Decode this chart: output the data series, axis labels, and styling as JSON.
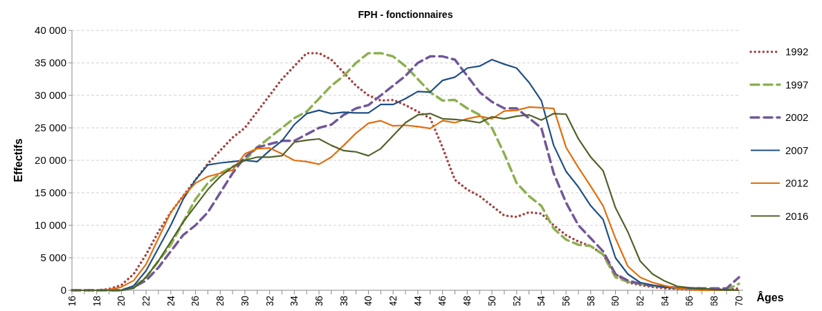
{
  "chart_data": {
    "type": "line",
    "title": "FPH - fonctionnaires",
    "xlabel": "Âges",
    "ylabel": "Effectifs",
    "x": [
      16,
      17,
      18,
      19,
      20,
      21,
      22,
      23,
      24,
      25,
      26,
      27,
      28,
      29,
      30,
      31,
      32,
      33,
      34,
      35,
      36,
      37,
      38,
      39,
      40,
      41,
      42,
      43,
      44,
      45,
      46,
      47,
      48,
      49,
      50,
      51,
      52,
      53,
      54,
      55,
      56,
      57,
      58,
      59,
      60,
      61,
      62,
      63,
      64,
      65,
      66,
      67,
      68,
      69,
      70
    ],
    "xlim": [
      16,
      70
    ],
    "xticks": [
      16,
      {
        "value": 17,
        "label": null
      },
      18,
      {
        "value": 19,
        "label": null
      },
      20,
      {
        "value": 21,
        "label": null
      },
      22,
      {
        "value": 23,
        "label": null
      },
      24,
      {
        "value": 25,
        "label": null
      },
      26,
      {
        "value": 27,
        "label": null
      },
      28,
      {
        "value": 29,
        "label": null
      },
      30,
      {
        "value": 31,
        "label": null
      },
      32,
      {
        "value": 33,
        "label": null
      },
      34,
      {
        "value": 35,
        "label": null
      },
      36,
      {
        "value": 37,
        "label": null
      },
      38,
      {
        "value": 39,
        "label": null
      },
      40,
      {
        "value": 41,
        "label": null
      },
      42,
      {
        "value": 43,
        "label": null
      },
      44,
      {
        "value": 45,
        "label": null
      },
      46,
      {
        "value": 47,
        "label": null
      },
      48,
      {
        "value": 49,
        "label": null
      },
      50,
      {
        "value": 51,
        "label": null
      },
      52,
      {
        "value": 53,
        "label": null
      },
      54,
      {
        "value": 55,
        "label": null
      },
      56,
      {
        "value": 57,
        "label": null
      },
      58,
      {
        "value": 59,
        "label": null
      },
      60,
      {
        "value": 61,
        "label": null
      },
      62,
      {
        "value": 63,
        "label": null
      },
      64,
      {
        "value": 65,
        "label": null
      },
      66,
      {
        "value": 67,
        "label": null
      },
      68,
      {
        "value": 69,
        "label": null
      },
      70
    ],
    "ylim": [
      0,
      40000
    ],
    "yticks": [
      0,
      {
        "value": 5000,
        "label": "5 000"
      },
      {
        "value": 10000,
        "label": "10 000"
      },
      {
        "value": 15000,
        "label": "15 000"
      },
      {
        "value": 20000,
        "label": "20 000"
      },
      {
        "value": 25000,
        "label": "25 000"
      },
      {
        "value": 30000,
        "label": "30 000"
      },
      {
        "value": 35000,
        "label": "35 000"
      },
      {
        "value": 40000,
        "label": "40 000"
      }
    ],
    "grid": "y",
    "legend": "right",
    "marker": "none",
    "series": [
      {
        "name": "1992",
        "color": "#a5413f",
        "line_style": "dotted",
        "values": [
          0,
          0,
          0,
          200,
          800,
          2500,
          5500,
          9000,
          12000,
          14500,
          17000,
          19500,
          21500,
          23500,
          25000,
          27500,
          30000,
          32500,
          34500,
          36500,
          36500,
          35500,
          33500,
          31500,
          30000,
          29200,
          29300,
          28500,
          27500,
          26500,
          22000,
          17000,
          15500,
          14500,
          13000,
          11500,
          11300,
          12000,
          11800,
          10000,
          8500,
          7500,
          6800,
          5500,
          2500,
          1200,
          800,
          500,
          300,
          200,
          100,
          100,
          100,
          100,
          300
        ]
      },
      {
        "name": "1997",
        "color": "#8cb04f",
        "line_style": "dashed",
        "values": [
          null,
          null,
          null,
          0,
          0,
          500,
          2000,
          4500,
          7000,
          10500,
          14000,
          16500,
          18000,
          19000,
          20000,
          22000,
          23500,
          25000,
          26500,
          27500,
          29500,
          31500,
          33000,
          35000,
          36500,
          36500,
          36000,
          34500,
          32500,
          30500,
          29200,
          29300,
          28000,
          27000,
          25000,
          21000,
          16500,
          14500,
          13000,
          9500,
          7800,
          7000,
          6800,
          5500,
          2000,
          1300,
          1000,
          700,
          500,
          300,
          200,
          200,
          100,
          100,
          1000
        ]
      },
      {
        "name": "2002",
        "color": "#71579a",
        "line_style": "dashed",
        "values": [
          0,
          0,
          0,
          0,
          0,
          500,
          1500,
          3500,
          6000,
          8500,
          10000,
          12000,
          15000,
          18000,
          20500,
          22000,
          22500,
          23000,
          23000,
          24000,
          25000,
          25500,
          27000,
          28000,
          28500,
          30000,
          31500,
          33000,
          35000,
          36000,
          36000,
          35500,
          33000,
          30500,
          29000,
          28000,
          28000,
          26500,
          25000,
          18000,
          13500,
          10000,
          8000,
          6000,
          2500,
          1500,
          1000,
          700,
          500,
          400,
          300,
          300,
          300,
          300,
          2000
        ]
      },
      {
        "name": "2007",
        "color": "#1f4e85",
        "line_style": "solid",
        "values": [
          null,
          null,
          null,
          0,
          0,
          700,
          3000,
          6500,
          10000,
          14000,
          17000,
          19300,
          19600,
          19800,
          20000,
          19800,
          21500,
          23000,
          25500,
          27200,
          27700,
          27200,
          27400,
          27300,
          27300,
          28600,
          28600,
          29500,
          30600,
          30500,
          32300,
          32800,
          34200,
          34500,
          35500,
          34800,
          34200,
          32000,
          29200,
          22300,
          18300,
          15900,
          13000,
          10900,
          5000,
          2500,
          1200,
          800,
          500,
          300,
          200,
          200,
          100,
          100,
          0
        ]
      },
      {
        "name": "2012",
        "color": "#e46c0a",
        "line_style": "solid",
        "values": [
          0,
          0,
          0,
          100,
          500,
          1500,
          4000,
          8000,
          12000,
          14500,
          16500,
          17500,
          18000,
          18500,
          21000,
          21800,
          21900,
          21000,
          20000,
          19800,
          19400,
          20500,
          22300,
          24200,
          25700,
          26100,
          25300,
          25400,
          25200,
          24900,
          26100,
          25800,
          26400,
          26800,
          26400,
          27600,
          27700,
          28200,
          28100,
          28000,
          22000,
          18900,
          16000,
          13000,
          8000,
          3700,
          2000,
          1200,
          700,
          300,
          100,
          0,
          0,
          0,
          0
        ]
      },
      {
        "name": "2016",
        "color": "#4f6228",
        "line_style": "solid",
        "values": [
          0,
          0,
          0,
          0,
          0,
          300,
          2000,
          4500,
          7500,
          10500,
          13000,
          15500,
          17500,
          19000,
          20000,
          20500,
          20500,
          20700,
          22800,
          23100,
          23300,
          22300,
          21500,
          21300,
          20700,
          21800,
          23800,
          25800,
          27000,
          27200,
          26400,
          26300,
          26100,
          25800,
          26700,
          26400,
          26800,
          27000,
          26200,
          27200,
          27100,
          23300,
          20500,
          18400,
          12700,
          9000,
          4500,
          2500,
          1400,
          600,
          400,
          300,
          100,
          0,
          0
        ]
      }
    ]
  }
}
